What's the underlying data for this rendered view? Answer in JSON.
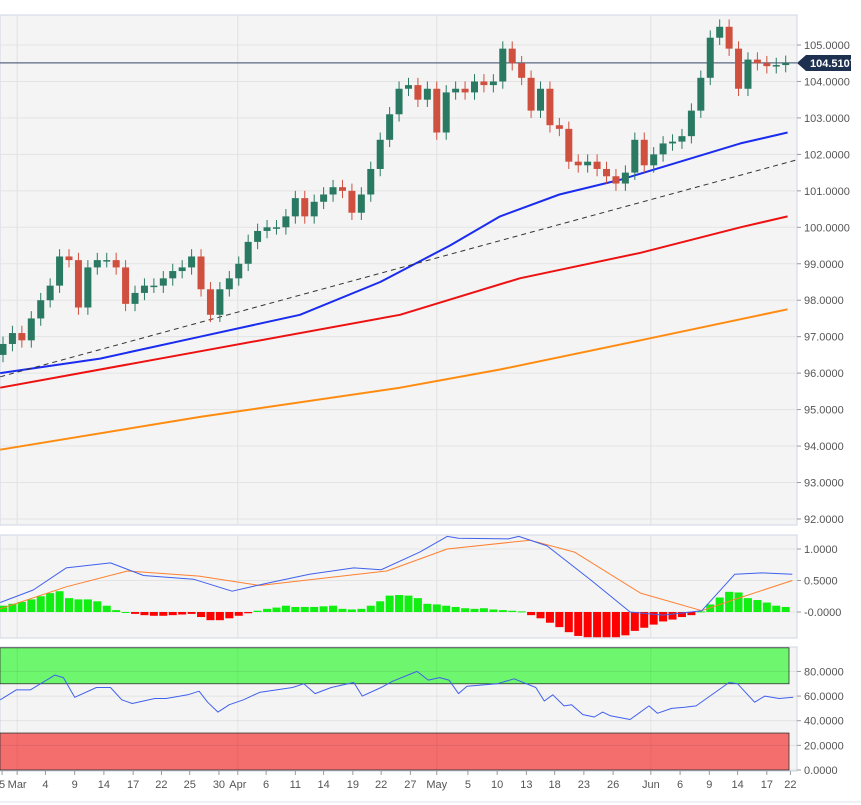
{
  "chart_data": {
    "type": "candlestick",
    "symbol_last_price": "104.5107",
    "colors": {
      "up": "#2a7a63",
      "down": "#d05040",
      "ma_fast": "#1a2cf0",
      "ma_mid": "#ee1111",
      "ma_slow": "#ff8c10",
      "trend": "#333333",
      "macd": "#4060ee",
      "signal": "#ff8030",
      "hist_up": "#11ee11",
      "hist_down": "#ff0000",
      "rsi": "#4060ee",
      "overbought": "#6ef66e",
      "oversold": "#f46e6e",
      "price_tag": "#1e3050"
    },
    "price_axis": {
      "ticks": [
        "92.0000",
        "93.0000",
        "94.0000",
        "95.0000",
        "96.0000",
        "97.0000",
        "98.0000",
        "99.0000",
        "100.0000",
        "101.0000",
        "102.0000",
        "103.0000",
        "104.0000",
        "105.0000"
      ],
      "range": [
        91.9,
        105.85
      ]
    },
    "x_axis": {
      "ticks": [
        {
          "label": "5",
          "index": -0.1
        },
        {
          "label": "Mar",
          "index": 1.5
        },
        {
          "label": "4",
          "index": 4.5
        },
        {
          "label": "9",
          "index": 7.6
        },
        {
          "label": "14",
          "index": 10.7
        },
        {
          "label": "17",
          "index": 13.8
        },
        {
          "label": "22",
          "index": 16.8
        },
        {
          "label": "25",
          "index": 19.8
        },
        {
          "label": "30",
          "index": 22.9
        },
        {
          "label": "Apr",
          "index": 24.9
        },
        {
          "label": "6",
          "index": 27.9
        },
        {
          "label": "11",
          "index": 31
        },
        {
          "label": "14",
          "index": 34
        },
        {
          "label": "19",
          "index": 37.1
        },
        {
          "label": "22",
          "index": 40.1
        },
        {
          "label": "27",
          "index": 43.2
        },
        {
          "label": "May",
          "index": 46
        },
        {
          "label": "5",
          "index": 49.3
        },
        {
          "label": "10",
          "index": 52.4
        },
        {
          "label": "13",
          "index": 55.5
        },
        {
          "label": "18",
          "index": 58.5
        },
        {
          "label": "23",
          "index": 61.6
        },
        {
          "label": "26",
          "index": 64.7
        },
        {
          "label": "Jun",
          "index": 68.7
        },
        {
          "label": "6",
          "index": 71.8
        },
        {
          "label": "9",
          "index": 74.9
        },
        {
          "label": "14",
          "index": 77.9
        },
        {
          "label": "17",
          "index": 81
        },
        {
          "label": "22",
          "index": 83.5
        }
      ],
      "month_gridlines": [
        1.5,
        24.9,
        46,
        68.7
      ]
    },
    "first_open": 96.5,
    "closes": [
      96.8,
      97.1,
      96.9,
      97.5,
      98.0,
      98.4,
      99.2,
      99.1,
      97.8,
      98.9,
      99.1,
      99.1,
      98.9,
      97.9,
      98.2,
      98.4,
      98.4,
      98.6,
      98.8,
      98.9,
      99.2,
      98.3,
      97.6,
      98.3,
      98.6,
      99.0,
      99.6,
      99.9,
      100.0,
      100.0,
      100.3,
      100.8,
      100.3,
      100.7,
      100.9,
      101.1,
      101.0,
      100.4,
      100.9,
      101.6,
      102.4,
      103.1,
      103.8,
      103.9,
      103.5,
      103.8,
      102.6,
      103.7,
      103.8,
      103.7,
      104.0,
      103.9,
      104.0,
      104.9,
      104.5,
      104.1,
      103.2,
      103.8,
      102.8,
      102.7,
      101.8,
      101.7,
      101.8,
      101.6,
      101.4,
      101.2,
      101.5,
      102.4,
      101.7,
      102.0,
      102.3,
      102.35,
      102.5,
      103.2,
      104.1,
      105.2,
      105.5,
      104.9,
      103.8,
      104.6,
      104.5,
      104.42,
      104.45,
      104.51
    ],
    "moving_averages": [
      {
        "name": "ma_fast",
        "points": [
          [
            -0.3,
            96.0
          ],
          [
            10.3,
            96.4
          ],
          [
            20.9,
            97.0
          ],
          [
            31.5,
            97.6
          ],
          [
            40,
            98.5
          ],
          [
            47.4,
            99.5
          ],
          [
            52.7,
            100.3
          ],
          [
            59,
            100.9
          ],
          [
            65.4,
            101.3
          ],
          [
            71.8,
            101.8
          ],
          [
            78.2,
            102.3
          ],
          [
            83.2,
            102.6
          ]
        ]
      },
      {
        "name": "ma_mid",
        "points": [
          [
            -0.3,
            95.6
          ],
          [
            20.9,
            96.6
          ],
          [
            42.1,
            97.6
          ],
          [
            54.8,
            98.6
          ],
          [
            67.6,
            99.3
          ],
          [
            78.2,
            100.0
          ],
          [
            83.2,
            100.3
          ]
        ]
      },
      {
        "name": "ma_slow",
        "points": [
          [
            -0.3,
            93.9
          ],
          [
            20.9,
            94.8
          ],
          [
            42.1,
            95.6
          ],
          [
            52.7,
            96.1
          ],
          [
            67.6,
            96.9
          ],
          [
            83.2,
            97.75
          ]
        ]
      }
    ],
    "trendline": [
      [
        -0.3,
        95.9
      ],
      [
        84.2,
        101.85
      ]
    ],
    "macd": {
      "axis_ticks": [
        "1.0000",
        "0.5000",
        "-0.0000"
      ],
      "range": [
        -0.45,
        1.3
      ],
      "macd_line": [
        [
          -0.3,
          0.15
        ],
        [
          3.2,
          0.35
        ],
        [
          6.7,
          0.7
        ],
        [
          11.4,
          0.78
        ],
        [
          14.9,
          0.58
        ],
        [
          20.2,
          0.52
        ],
        [
          24.3,
          0.33
        ],
        [
          27.8,
          0.45
        ],
        [
          32.5,
          0.6
        ],
        [
          37.2,
          0.7
        ],
        [
          40.1,
          0.67
        ],
        [
          44.2,
          0.95
        ],
        [
          47.1,
          1.2
        ],
        [
          48.3,
          1.17
        ],
        [
          53.6,
          1.16
        ],
        [
          54.7,
          1.2
        ],
        [
          57.7,
          1.05
        ],
        [
          62.4,
          0.5
        ],
        [
          66.5,
          0.0
        ],
        [
          70,
          -0.05
        ],
        [
          74.1,
          0.02
        ],
        [
          77.6,
          0.6
        ],
        [
          80.5,
          0.62
        ],
        [
          83.7,
          0.6
        ]
      ],
      "signal_line": [
        [
          -0.3,
          0.05
        ],
        [
          6.7,
          0.4
        ],
        [
          13.2,
          0.65
        ],
        [
          20.8,
          0.57
        ],
        [
          27.2,
          0.42
        ],
        [
          40.7,
          0.65
        ],
        [
          47.1,
          1.0
        ],
        [
          55.9,
          1.14
        ],
        [
          60.6,
          0.95
        ],
        [
          67.6,
          0.3
        ],
        [
          74.1,
          0.02
        ],
        [
          77.6,
          0.2
        ],
        [
          83.7,
          0.5
        ]
      ],
      "histogram": [
        0.1,
        0.13,
        0.16,
        0.2,
        0.25,
        0.3,
        0.33,
        0.22,
        0.2,
        0.2,
        0.17,
        0.1,
        0.03,
        0,
        -0.03,
        -0.05,
        -0.06,
        -0.06,
        -0.05,
        -0.04,
        -0.03,
        -0.08,
        -0.13,
        -0.13,
        -0.1,
        -0.06,
        -0.02,
        0.02,
        0.05,
        0.07,
        0.1,
        0.08,
        0.08,
        0.08,
        0.09,
        0.1,
        0.05,
        0.04,
        0.05,
        0.1,
        0.17,
        0.26,
        0.27,
        0.26,
        0.22,
        0.13,
        0.12,
        0.1,
        0.08,
        0.06,
        0.05,
        0.06,
        0.04,
        0.03,
        0.02,
        0.01,
        -0.05,
        -0.1,
        -0.17,
        -0.24,
        -0.32,
        -0.38,
        -0.4,
        -0.4,
        -0.4,
        -0.4,
        -0.37,
        -0.3,
        -0.25,
        -0.2,
        -0.15,
        -0.12,
        -0.08,
        -0.05,
        0.01,
        0.12,
        0.23,
        0.32,
        0.31,
        0.22,
        0.19,
        0.15,
        0.1,
        0.08
      ]
    },
    "rsi": {
      "axis_ticks": [
        "80.0000",
        "60.0000",
        "40.0000",
        "20.0000",
        "0.0000"
      ],
      "range": [
        0,
        100
      ],
      "overbought": 70,
      "oversold": 30,
      "points": [
        [
          -0.3,
          57
        ],
        [
          1.4,
          65
        ],
        [
          2.9,
          65
        ],
        [
          5.5,
          77
        ],
        [
          6.4,
          75
        ],
        [
          7.6,
          59
        ],
        [
          9.9,
          67
        ],
        [
          11.4,
          67
        ],
        [
          12.6,
          57
        ],
        [
          13.7,
          54
        ],
        [
          16.1,
          58
        ],
        [
          17.3,
          58
        ],
        [
          19.6,
          61
        ],
        [
          20.8,
          64
        ],
        [
          21.7,
          55
        ],
        [
          22.8,
          47
        ],
        [
          24,
          53
        ],
        [
          25.5,
          57
        ],
        [
          27.2,
          63
        ],
        [
          30.7,
          67
        ],
        [
          31.9,
          70
        ],
        [
          33.1,
          62
        ],
        [
          34.8,
          67
        ],
        [
          37.2,
          71
        ],
        [
          38.1,
          60
        ],
        [
          40.1,
          67
        ],
        [
          41.3,
          72
        ],
        [
          43.9,
          80
        ],
        [
          45.1,
          73
        ],
        [
          46.3,
          75
        ],
        [
          47.3,
          73
        ],
        [
          48.3,
          62
        ],
        [
          49.2,
          68
        ],
        [
          52.4,
          70
        ],
        [
          54.2,
          74
        ],
        [
          56.5,
          67
        ],
        [
          57.4,
          56
        ],
        [
          58.3,
          61
        ],
        [
          59.5,
          52
        ],
        [
          60.3,
          53
        ],
        [
          61.5,
          45
        ],
        [
          62.7,
          43
        ],
        [
          63.6,
          47
        ],
        [
          64.4,
          44
        ],
        [
          66.5,
          41
        ],
        [
          68.5,
          52
        ],
        [
          69.4,
          46
        ],
        [
          70.9,
          50
        ],
        [
          72.3,
          51
        ],
        [
          73.5,
          52
        ],
        [
          77,
          71
        ],
        [
          77.9,
          70
        ],
        [
          79.7,
          55
        ],
        [
          80.8,
          60
        ],
        [
          82.3,
          58
        ],
        [
          83.8,
          59
        ]
      ]
    }
  }
}
